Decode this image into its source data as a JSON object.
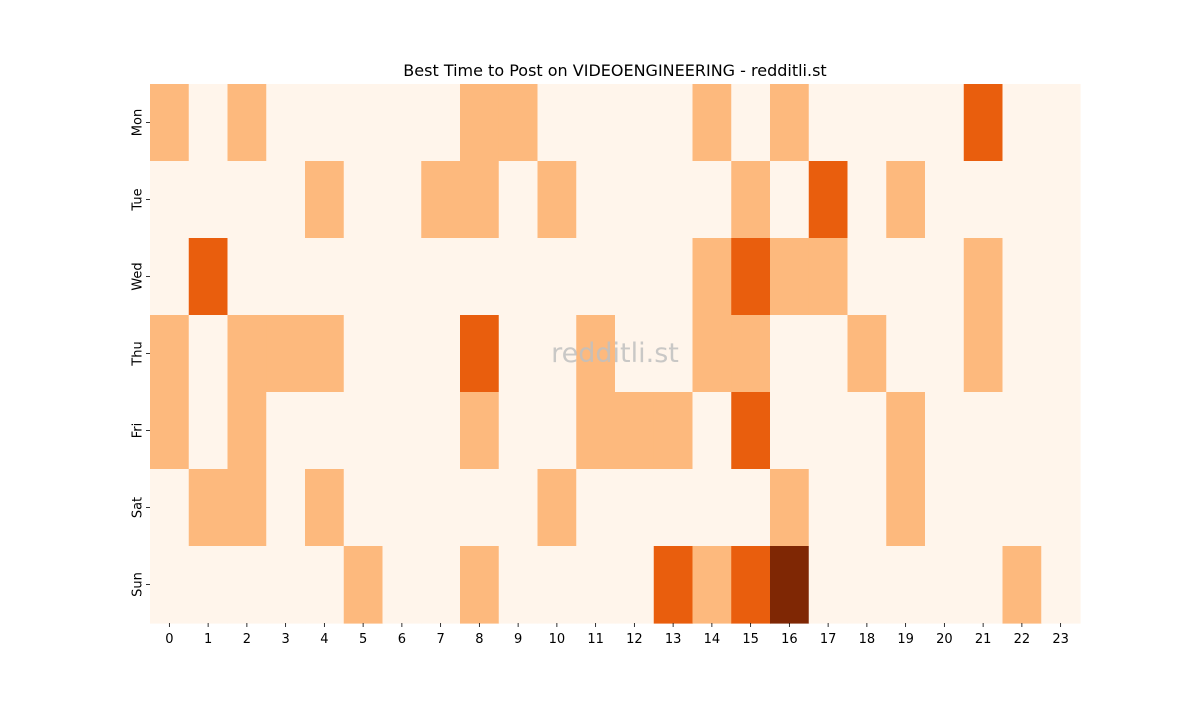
{
  "chart_data": {
    "type": "heatmap",
    "title": "Best Time to Post on VIDEOENGINEERING - redditli.st",
    "watermark": "redditli.st",
    "xlabel": "",
    "ylabel": "",
    "x_categories": [
      "0",
      "1",
      "2",
      "3",
      "4",
      "5",
      "6",
      "7",
      "8",
      "9",
      "10",
      "11",
      "12",
      "13",
      "14",
      "15",
      "16",
      "17",
      "18",
      "19",
      "20",
      "21",
      "22",
      "23"
    ],
    "y_categories": [
      "Mon",
      "Tue",
      "Wed",
      "Thu",
      "Fri",
      "Sat",
      "Sun"
    ],
    "values": [
      [
        1,
        0,
        1,
        0,
        0,
        0,
        0,
        0,
        1,
        1,
        0,
        0,
        0,
        0,
        1,
        0,
        1,
        0,
        0,
        0,
        0,
        2,
        0,
        0
      ],
      [
        0,
        0,
        0,
        0,
        1,
        0,
        0,
        1,
        1,
        0,
        1,
        0,
        0,
        0,
        0,
        1,
        0,
        2,
        0,
        1,
        0,
        0,
        0,
        0
      ],
      [
        0,
        2,
        0,
        0,
        0,
        0,
        0,
        0,
        0,
        0,
        0,
        0,
        0,
        0,
        1,
        2,
        1,
        1,
        0,
        0,
        0,
        1,
        0,
        0
      ],
      [
        1,
        0,
        1,
        1,
        1,
        0,
        0,
        0,
        2,
        0,
        0,
        1,
        0,
        0,
        1,
        1,
        0,
        0,
        1,
        0,
        0,
        1,
        0,
        0
      ],
      [
        1,
        0,
        1,
        0,
        0,
        0,
        0,
        0,
        1,
        0,
        0,
        1,
        1,
        1,
        0,
        2,
        0,
        0,
        0,
        1,
        0,
        0,
        0,
        0
      ],
      [
        0,
        1,
        1,
        0,
        1,
        0,
        0,
        0,
        0,
        0,
        1,
        0,
        0,
        0,
        0,
        0,
        1,
        0,
        0,
        1,
        0,
        0,
        0,
        0
      ],
      [
        0,
        0,
        0,
        0,
        0,
        1,
        0,
        0,
        1,
        0,
        0,
        0,
        0,
        2,
        1,
        2,
        3,
        0,
        0,
        0,
        0,
        0,
        1,
        0
      ]
    ],
    "colormap": "Oranges",
    "color_levels": [
      "#fff5eb",
      "#fdb97d",
      "#e95e0d",
      "#7f2704"
    ],
    "grid": false,
    "legend": "none"
  }
}
